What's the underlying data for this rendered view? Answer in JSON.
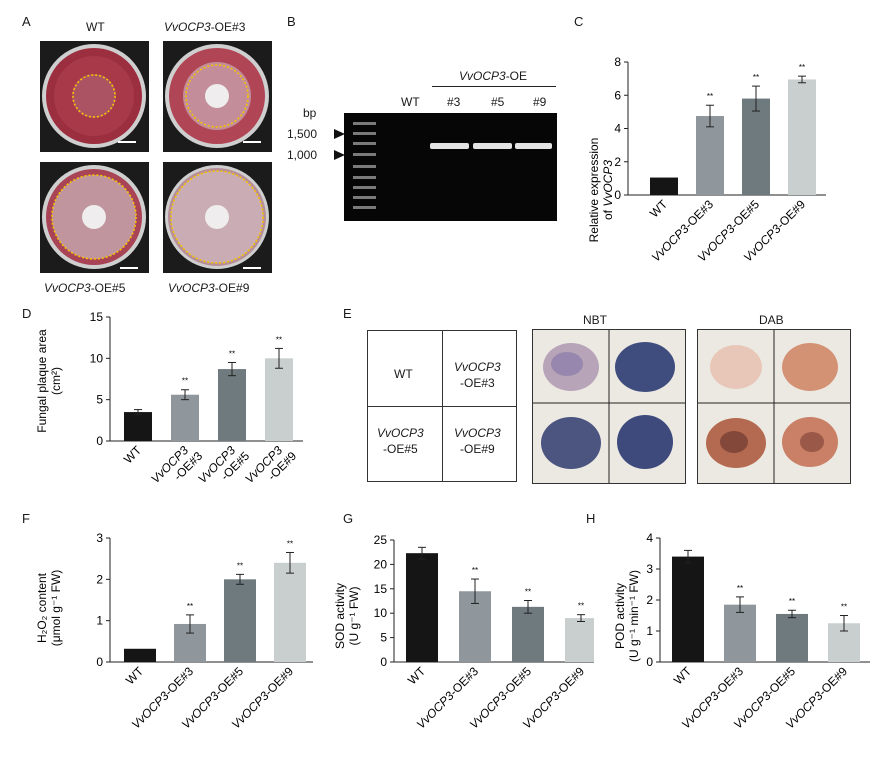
{
  "panels": {
    "A": {
      "letter": "A",
      "labels": [
        "WT",
        "VvOCP3-OE#3",
        "VvOCP3-OE#5",
        "VvOCP3-OE#9"
      ],
      "label_prefix": "VvOCP3",
      "label_suffixes": [
        "-OE#3",
        "-OE#5",
        "-OE#9"
      ]
    },
    "B": {
      "letter": "B",
      "group_label": "VvOCP3-OE",
      "group_prefix": "VvOCP3",
      "group_suffix": "-OE",
      "lanes": [
        "WT",
        "#3",
        "#5",
        "#9"
      ],
      "bp": "bp",
      "markers": [
        "1,500",
        "1,000"
      ]
    },
    "E": {
      "letter": "E",
      "stains": [
        "NBT",
        "DAB"
      ],
      "grid": {
        "wt": "WT",
        "oe3_a": "VvOCP3",
        "oe3_b": "-OE#3",
        "oe5_a": "VvOCP3",
        "oe5_b": "-OE#5",
        "oe9_a": "VvOCP3",
        "oe9_b": "-OE#9"
      }
    }
  },
  "colors": {
    "wt": "#151515",
    "oe3": "#8f979c",
    "oe5": "#6e7a7e",
    "oe9": "#c9cfcf"
  },
  "chart_data": [
    {
      "id": "C",
      "letter": "C",
      "type": "bar",
      "categories": [
        "WT",
        "VvOCP3-OE#3",
        "VvOCP3-OE#5",
        "VvOCP3-OE#9"
      ],
      "values": [
        1.05,
        4.75,
        5.8,
        6.95
      ],
      "errors": [
        0,
        0.65,
        0.75,
        0.2
      ],
      "significance": [
        "",
        "**",
        "**",
        "**"
      ],
      "ylabel_line1": "Relative expression",
      "ylabel_line2_prefix": "of ",
      "ylabel_line2_gene": "VvOCP3",
      "ylim": [
        0,
        8
      ],
      "yticks": [
        0,
        2,
        4,
        6,
        8
      ]
    },
    {
      "id": "D",
      "letter": "D",
      "type": "bar",
      "categories": [
        "WT",
        "VvOCP3-OE#3",
        "VvOCP3-OE#5",
        "VvOCP3-OE#9"
      ],
      "values": [
        3.5,
        5.6,
        8.7,
        10.0
      ],
      "errors": [
        0.3,
        0.6,
        0.8,
        1.2
      ],
      "significance": [
        "",
        "**",
        "**",
        "**"
      ],
      "ylabel_line1": "Fungal plaque area",
      "ylabel_line2": "(cm²)",
      "ylim": [
        0,
        15
      ],
      "yticks": [
        0,
        5,
        10,
        15
      ]
    },
    {
      "id": "F",
      "letter": "F",
      "type": "bar",
      "categories": [
        "WT",
        "VvOCP3-OE#3",
        "VvOCP3-OE#5",
        "VvOCP3-OE#9"
      ],
      "values": [
        0.32,
        0.92,
        2.0,
        2.4
      ],
      "errors": [
        0,
        0.22,
        0.12,
        0.25
      ],
      "significance": [
        "",
        "**",
        "**",
        "**"
      ],
      "ylabel_line1": "H₂O₂ content",
      "ylabel_line2": "(μmol g⁻¹ FW)",
      "ylim": [
        0,
        3
      ],
      "yticks": [
        0,
        1,
        2,
        3
      ]
    },
    {
      "id": "G",
      "letter": "G",
      "type": "bar",
      "categories": [
        "WT",
        "VvOCP3-OE#3",
        "VvOCP3-OE#5",
        "VvOCP3-OE#9"
      ],
      "values": [
        22.3,
        14.5,
        11.3,
        9.0
      ],
      "errors": [
        1.2,
        2.5,
        1.3,
        0.7
      ],
      "significance": [
        "",
        "**",
        "**",
        "**"
      ],
      "ylabel_line1": "SOD activity",
      "ylabel_line2": "(U g⁻¹ FW)",
      "ylim": [
        0,
        25
      ],
      "yticks": [
        0,
        5,
        10,
        15,
        20,
        25
      ]
    },
    {
      "id": "H",
      "letter": "H",
      "type": "bar",
      "categories": [
        "WT",
        "VvOCP3-OE#3",
        "VvOCP3-OE#5",
        "VvOCP3-OE#9"
      ],
      "values": [
        3.4,
        1.85,
        1.55,
        1.25
      ],
      "errors": [
        0.2,
        0.25,
        0.12,
        0.25
      ],
      "significance": [
        "",
        "**",
        "**",
        "**"
      ],
      "ylabel_line1": "POD activity",
      "ylabel_line2": "(U g⁻¹ min⁻¹ FW)",
      "ylim": [
        0,
        4
      ],
      "yticks": [
        0,
        1,
        2,
        3,
        4
      ]
    }
  ]
}
